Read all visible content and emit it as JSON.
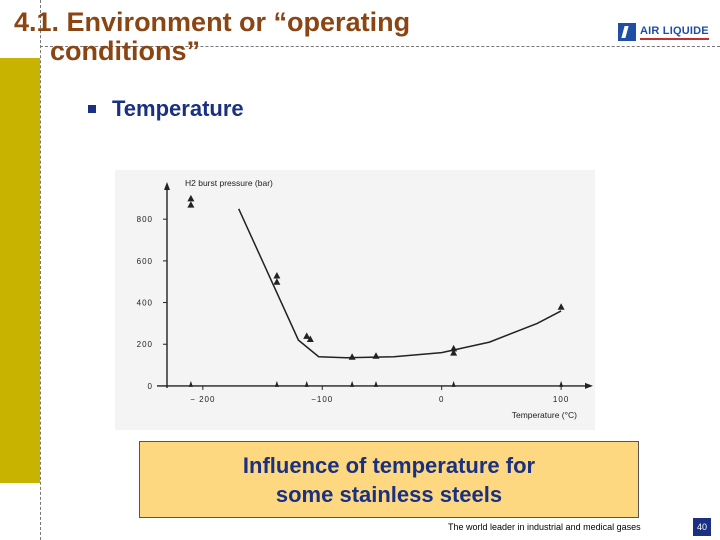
{
  "slide": {
    "title_line1": "4.1. Environment or “operating",
    "title_line2": "conditions”",
    "bullet": "Temperature",
    "caption_line1": "Influence of temperature for",
    "caption_line2": "some stainless steels",
    "footer": "The world leader in industrial and medical gases",
    "page_number": "40",
    "logo_text": "AIR LIQUIDE"
  },
  "colors": {
    "title": "#8b4513",
    "accent_bar": "#c8b400",
    "bullet_text": "#1a3080",
    "caption_bg": "#fdd880"
  },
  "chart_data": {
    "type": "line",
    "ylabel": "H2 burst pressure (bar)",
    "xlabel": "Temperature (°C)",
    "xlim": [
      -230,
      120
    ],
    "ylim": [
      -10,
      940
    ],
    "x_ticks": [
      -200,
      -100,
      0,
      100
    ],
    "x_tick_labels": [
      "− 200",
      "−100",
      "0",
      "100"
    ],
    "y_ticks": [
      0,
      200,
      400,
      600,
      800
    ],
    "y_tick_labels": [
      "0",
      "200",
      "400",
      "600",
      "800"
    ],
    "curve": [
      {
        "x": -170,
        "y": 850
      },
      {
        "x": -120,
        "y": 220
      },
      {
        "x": -103,
        "y": 140
      },
      {
        "x": -80,
        "y": 135
      },
      {
        "x": -40,
        "y": 140
      },
      {
        "x": 0,
        "y": 160
      },
      {
        "x": 40,
        "y": 210
      },
      {
        "x": 80,
        "y": 300
      },
      {
        "x": 100,
        "y": 360
      }
    ],
    "points": [
      {
        "x": -210,
        "y": 900
      },
      {
        "x": -210,
        "y": 870
      },
      {
        "x": -138,
        "y": 530
      },
      {
        "x": -138,
        "y": 500
      },
      {
        "x": -113,
        "y": 240
      },
      {
        "x": -110,
        "y": 225
      },
      {
        "x": -75,
        "y": 140
      },
      {
        "x": -55,
        "y": 145
      },
      {
        "x": 10,
        "y": 180
      },
      {
        "x": 10,
        "y": 160
      },
      {
        "x": 100,
        "y": 380
      }
    ],
    "arrow_x": [
      -210,
      -138,
      -113,
      -75,
      -55,
      10,
      100
    ],
    "grid": false,
    "legend": "none"
  }
}
